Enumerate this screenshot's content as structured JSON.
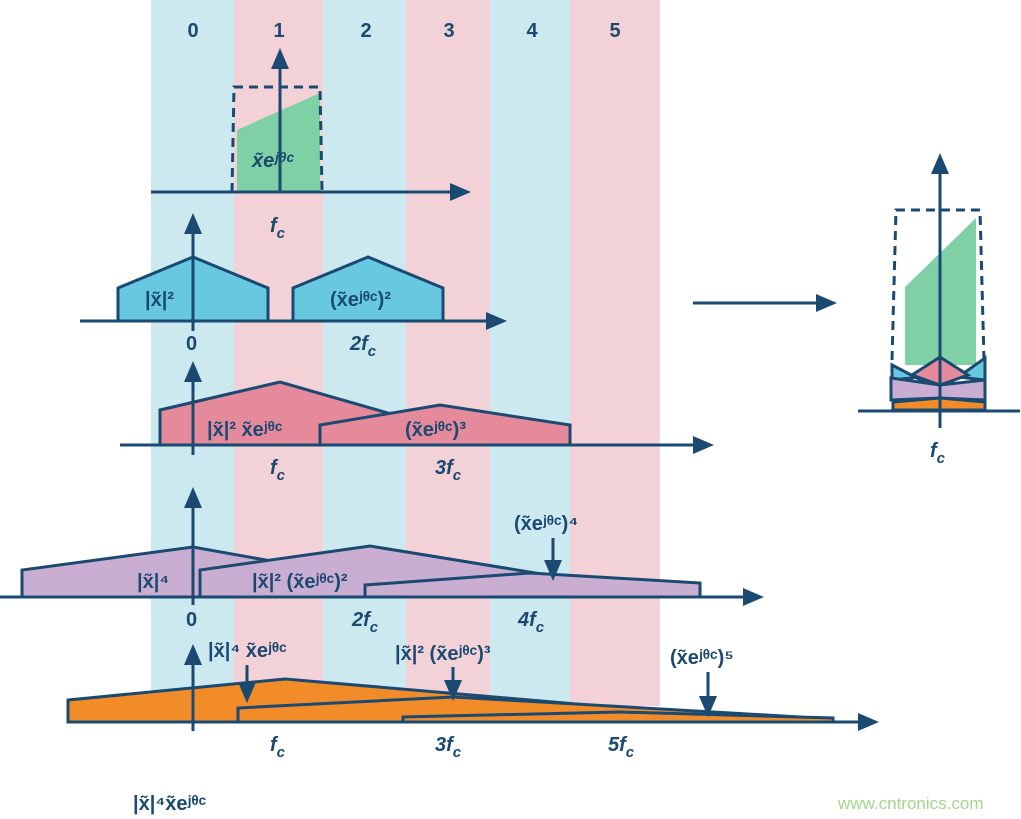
{
  "colors": {
    "band_blue": "#cce9f0",
    "band_pink": "#f2d1d7",
    "ink": "#1a4a72",
    "cyan": "#67c8df",
    "pink": "#e48a9a",
    "purple": "#c9aed2",
    "orange": "#f28c28",
    "green": "#7fd1a5",
    "watermark": "#9fd88a"
  },
  "bands": [
    "0",
    "1",
    "2",
    "3",
    "4",
    "5"
  ],
  "row1": {
    "signal": "x̃eʲᶿᶜ",
    "fc": {
      "coef": "",
      "var": "f",
      "sub": "c"
    }
  },
  "row2": {
    "left": "|x̃|²",
    "right": "(x̃eʲᶿᶜ)²",
    "tick0": "0",
    "tick1": {
      "coef": "2",
      "var": "f",
      "sub": "c"
    }
  },
  "row3": {
    "left": "|x̃|² x̃eʲᶿᶜ",
    "right": "(x̃eʲᶿᶜ)³",
    "tick0": {
      "coef": "",
      "var": "f",
      "sub": "c"
    },
    "tick1": {
      "coef": "3",
      "var": "f",
      "sub": "c"
    }
  },
  "row4": {
    "a": "|x̃|⁴",
    "b": "|x̃|² (x̃eʲᶿᶜ)²",
    "c": "(x̃eʲᶿᶜ)⁴",
    "tick0": "0",
    "tick1": {
      "coef": "2",
      "var": "f",
      "sub": "c"
    },
    "tick2": {
      "coef": "4",
      "var": "f",
      "sub": "c"
    }
  },
  "row5": {
    "a": "|x̃|⁴ x̃eʲᶿᶜ",
    "b": "|x̃|² (x̃eʲᶿᶜ)³",
    "c": "(x̃eʲᶿᶜ)⁵",
    "tick0": {
      "coef": "",
      "var": "f",
      "sub": "c"
    },
    "tick1": {
      "coef": "3",
      "var": "f",
      "sub": "c"
    },
    "tick2": {
      "coef": "5",
      "var": "f",
      "sub": "c"
    }
  },
  "bottom_label": "|x̃|⁴x̃eʲᶿᶜ",
  "result": {
    "fc": {
      "coef": "",
      "var": "f",
      "sub": "c"
    }
  },
  "watermark": "www.cntronics.com"
}
